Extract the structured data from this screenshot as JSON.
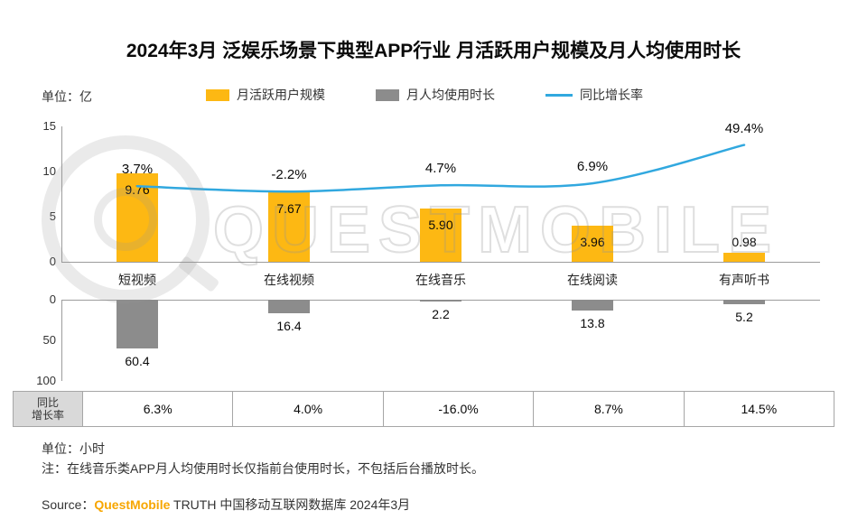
{
  "title": "2024年3月 泛娱乐场景下典型APP行业 月活跃用户规模及月人均使用时长",
  "units": {
    "top": "单位：亿",
    "bottom": "单位：小时"
  },
  "note": "注：在线音乐类APP月人均使用时长仅指前台使用时长，不包括后台播放时长。",
  "source": {
    "prefix": "Source：",
    "brand": "QuestMobile",
    "suffix": " TRUTH 中国移动互联网数据库 2024年3月"
  },
  "watermark": {
    "text": "QUESTMOBILE"
  },
  "legend": [
    {
      "label": "月活跃用户规模",
      "swatch": "bar",
      "color": "#FDB813"
    },
    {
      "label": "月人均使用时长",
      "swatch": "bar",
      "color": "#8C8C8C"
    },
    {
      "label": "同比增长率",
      "swatch": "line",
      "color": "#31A8DF"
    }
  ],
  "chart_data": {
    "type": "bar",
    "title": "2024年3月 泛娱乐场景下典型APP行业 月活跃用户规模及月人均使用时长",
    "categories": [
      "短视频",
      "在线视频",
      "在线音乐",
      "在线阅读",
      "有声听书"
    ],
    "series": [
      {
        "name": "月活跃用户规模",
        "type": "bar",
        "unit": "亿",
        "color": "#FDB813",
        "values": [
          9.76,
          7.67,
          5.9,
          3.96,
          0.98
        ],
        "labels": [
          "9.76",
          "7.67",
          "5.90",
          "3.96",
          "0.98"
        ],
        "axis": {
          "ticks": [
            0,
            5,
            10,
            15
          ],
          "range": [
            0,
            15
          ]
        }
      },
      {
        "name": "同比增长率",
        "type": "line",
        "unit": "%",
        "color": "#31A8DF",
        "values": [
          3.7,
          -2.2,
          4.7,
          6.9,
          49.4
        ],
        "labels": [
          "3.7%",
          "-2.2%",
          "4.7%",
          "6.9%",
          "49.4%"
        ]
      },
      {
        "name": "月人均使用时长",
        "type": "bar",
        "unit": "小时",
        "color": "#8C8C8C",
        "inverted": true,
        "values": [
          60.4,
          16.4,
          2.2,
          13.8,
          5.2
        ],
        "labels": [
          "60.4",
          "16.4",
          "2.2",
          "13.8",
          "5.2"
        ],
        "axis": {
          "ticks": [
            0,
            50,
            100
          ],
          "range": [
            0,
            100
          ]
        }
      }
    ],
    "table": {
      "row_name": "同比增长率",
      "header_lines": [
        "同比",
        "增长率"
      ],
      "values": [
        "6.3%",
        "4.0%",
        "-16.0%",
        "8.7%",
        "14.5%"
      ]
    },
    "legend_position": "top",
    "grid": false
  }
}
